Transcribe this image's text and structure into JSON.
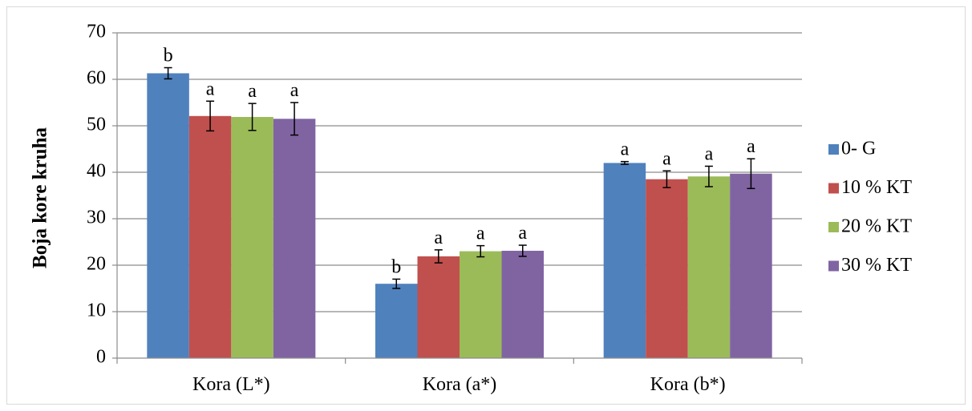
{
  "chart_data": {
    "type": "bar",
    "title": "",
    "xlabel": "",
    "ylabel": "Boja kore kruha",
    "ylim": [
      0,
      70
    ],
    "yticks": [
      "0",
      "10",
      "20",
      "30",
      "40",
      "50",
      "60",
      "70"
    ],
    "grid": true,
    "legend_position": "right",
    "categories": [
      "Kora (L*)",
      "Kora (a*)",
      "Kora (b*)"
    ],
    "series": [
      {
        "name": "0- G",
        "color": "#4f81bd",
        "values": [
          61.3,
          16.0,
          42.0
        ],
        "errors": [
          1.2,
          1.0,
          0.3
        ],
        "labels": [
          "b",
          "b",
          "a"
        ]
      },
      {
        "name": "10 % KT",
        "color": "#c0504d",
        "values": [
          52.1,
          21.9,
          38.5
        ],
        "errors": [
          3.2,
          1.4,
          1.8
        ],
        "labels": [
          "a",
          "a",
          "a"
        ]
      },
      {
        "name": "20 % KT",
        "color": "#9bbb59",
        "values": [
          51.9,
          23.0,
          39.1
        ],
        "errors": [
          2.9,
          1.2,
          2.2
        ],
        "labels": [
          "a",
          "a",
          "a"
        ]
      },
      {
        "name": "30 % KT",
        "color": "#8064a2",
        "values": [
          51.5,
          23.1,
          39.7
        ],
        "errors": [
          3.5,
          1.2,
          3.2
        ],
        "labels": [
          "a",
          "a",
          "a"
        ]
      }
    ]
  }
}
